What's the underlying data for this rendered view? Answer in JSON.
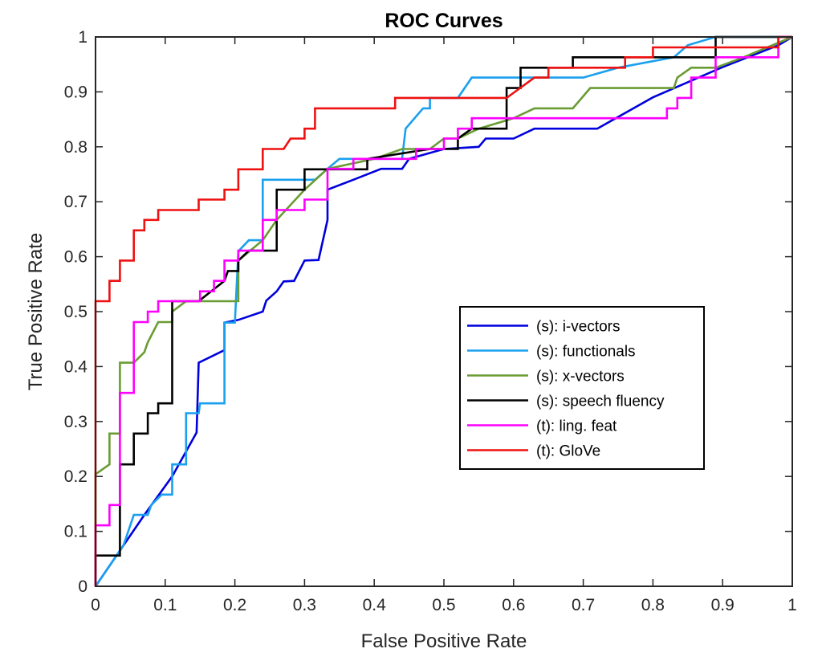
{
  "chart_data": {
    "type": "line",
    "title": "ROC Curves",
    "xlabel": "False Positive Rate",
    "ylabel": "True Positive Rate",
    "xlim": [
      0,
      1
    ],
    "ylim": [
      0,
      1
    ],
    "xticks": [
      0,
      0.1,
      0.2,
      0.3,
      0.4,
      0.5,
      0.6,
      0.7,
      0.8,
      0.9,
      1
    ],
    "yticks": [
      0,
      0.1,
      0.2,
      0.3,
      0.4,
      0.5,
      0.6,
      0.7,
      0.8,
      0.9,
      1
    ],
    "xtick_labels": [
      "0",
      "0.1",
      "0.2",
      "0.3",
      "0.4",
      "0.5",
      "0.6",
      "0.7",
      "0.8",
      "0.9",
      "1"
    ],
    "ytick_labels": [
      "0",
      "0.1",
      "0.2",
      "0.3",
      "0.4",
      "0.5",
      "0.6",
      "0.7",
      "0.8",
      "0.9",
      "1"
    ],
    "grid": false,
    "legend_position": "lower-right",
    "series": [
      {
        "name": "(s): i-vectors",
        "color": "#0000dd",
        "points": [
          [
            0,
            0
          ],
          [
            0.035,
            0.065
          ],
          [
            0.07,
            0.13
          ],
          [
            0.11,
            0.2
          ],
          [
            0.145,
            0.28
          ],
          [
            0.148,
            0.407
          ],
          [
            0.185,
            0.43
          ],
          [
            0.185,
            0.48
          ],
          [
            0.205,
            0.485
          ],
          [
            0.24,
            0.5
          ],
          [
            0.245,
            0.52
          ],
          [
            0.26,
            0.537
          ],
          [
            0.27,
            0.555
          ],
          [
            0.285,
            0.556
          ],
          [
            0.3,
            0.593
          ],
          [
            0.32,
            0.594
          ],
          [
            0.333,
            0.667
          ],
          [
            0.333,
            0.722
          ],
          [
            0.37,
            0.74
          ],
          [
            0.41,
            0.76
          ],
          [
            0.44,
            0.76
          ],
          [
            0.45,
            0.778
          ],
          [
            0.5,
            0.796
          ],
          [
            0.55,
            0.8
          ],
          [
            0.56,
            0.815
          ],
          [
            0.6,
            0.815
          ],
          [
            0.63,
            0.833
          ],
          [
            0.72,
            0.833
          ],
          [
            0.8,
            0.89
          ],
          [
            0.9,
            0.945
          ],
          [
            0.98,
            0.985
          ],
          [
            1,
            1
          ]
        ]
      },
      {
        "name": "(s): functionals",
        "color": "#1aa0ee",
        "points": [
          [
            0,
            0
          ],
          [
            0.04,
            0.074
          ],
          [
            0.055,
            0.13
          ],
          [
            0.075,
            0.13
          ],
          [
            0.08,
            0.148
          ],
          [
            0.095,
            0.167
          ],
          [
            0.11,
            0.167
          ],
          [
            0.11,
            0.222
          ],
          [
            0.13,
            0.222
          ],
          [
            0.13,
            0.315
          ],
          [
            0.148,
            0.315
          ],
          [
            0.15,
            0.333
          ],
          [
            0.185,
            0.333
          ],
          [
            0.185,
            0.48
          ],
          [
            0.2,
            0.48
          ],
          [
            0.205,
            0.61
          ],
          [
            0.22,
            0.63
          ],
          [
            0.24,
            0.63
          ],
          [
            0.24,
            0.74
          ],
          [
            0.3,
            0.74
          ],
          [
            0.315,
            0.74
          ],
          [
            0.333,
            0.76
          ],
          [
            0.35,
            0.778
          ],
          [
            0.39,
            0.778
          ],
          [
            0.44,
            0.778
          ],
          [
            0.445,
            0.833
          ],
          [
            0.47,
            0.87
          ],
          [
            0.48,
            0.87
          ],
          [
            0.48,
            0.889
          ],
          [
            0.52,
            0.889
          ],
          [
            0.54,
            0.926
          ],
          [
            0.7,
            0.926
          ],
          [
            0.75,
            0.944
          ],
          [
            0.83,
            0.963
          ],
          [
            0.85,
            0.985
          ],
          [
            0.89,
            1
          ],
          [
            1,
            1
          ]
        ]
      },
      {
        "name": "(s): x-vectors",
        "color": "#6a9c34",
        "points": [
          [
            0,
            0
          ],
          [
            0,
            0.204
          ],
          [
            0.02,
            0.222
          ],
          [
            0.02,
            0.278
          ],
          [
            0.035,
            0.278
          ],
          [
            0.035,
            0.407
          ],
          [
            0.055,
            0.407
          ],
          [
            0.07,
            0.426
          ],
          [
            0.075,
            0.444
          ],
          [
            0.09,
            0.481
          ],
          [
            0.11,
            0.481
          ],
          [
            0.11,
            0.5
          ],
          [
            0.13,
            0.519
          ],
          [
            0.205,
            0.519
          ],
          [
            0.205,
            0.593
          ],
          [
            0.24,
            0.63
          ],
          [
            0.26,
            0.667
          ],
          [
            0.3,
            0.722
          ],
          [
            0.333,
            0.76
          ],
          [
            0.4,
            0.778
          ],
          [
            0.44,
            0.796
          ],
          [
            0.48,
            0.796
          ],
          [
            0.5,
            0.815
          ],
          [
            0.52,
            0.815
          ],
          [
            0.55,
            0.833
          ],
          [
            0.6,
            0.852
          ],
          [
            0.63,
            0.87
          ],
          [
            0.685,
            0.87
          ],
          [
            0.71,
            0.907
          ],
          [
            0.83,
            0.907
          ],
          [
            0.835,
            0.926
          ],
          [
            0.855,
            0.944
          ],
          [
            0.89,
            0.944
          ],
          [
            0.93,
            0.963
          ],
          [
            1,
            1
          ]
        ]
      },
      {
        "name": "(s): speech fluency",
        "color": "#000000",
        "points": [
          [
            0,
            0
          ],
          [
            0,
            0.056
          ],
          [
            0.035,
            0.056
          ],
          [
            0.035,
            0.148
          ],
          [
            0.035,
            0.222
          ],
          [
            0.055,
            0.222
          ],
          [
            0.055,
            0.278
          ],
          [
            0.075,
            0.278
          ],
          [
            0.075,
            0.315
          ],
          [
            0.09,
            0.315
          ],
          [
            0.09,
            0.333
          ],
          [
            0.11,
            0.333
          ],
          [
            0.11,
            0.519
          ],
          [
            0.148,
            0.519
          ],
          [
            0.185,
            0.556
          ],
          [
            0.19,
            0.574
          ],
          [
            0.205,
            0.574
          ],
          [
            0.205,
            0.593
          ],
          [
            0.22,
            0.611
          ],
          [
            0.26,
            0.611
          ],
          [
            0.26,
            0.722
          ],
          [
            0.3,
            0.722
          ],
          [
            0.3,
            0.759
          ],
          [
            0.333,
            0.759
          ],
          [
            0.37,
            0.759
          ],
          [
            0.39,
            0.759
          ],
          [
            0.39,
            0.778
          ],
          [
            0.48,
            0.796
          ],
          [
            0.52,
            0.796
          ],
          [
            0.52,
            0.815
          ],
          [
            0.54,
            0.833
          ],
          [
            0.59,
            0.833
          ],
          [
            0.59,
            0.907
          ],
          [
            0.61,
            0.907
          ],
          [
            0.61,
            0.944
          ],
          [
            0.685,
            0.944
          ],
          [
            0.685,
            0.963
          ],
          [
            0.89,
            0.963
          ],
          [
            0.89,
            1
          ],
          [
            1,
            1
          ]
        ]
      },
      {
        "name": "(t): ling. feat",
        "color": "#ff00ff",
        "points": [
          [
            0,
            0
          ],
          [
            0,
            0.111
          ],
          [
            0.02,
            0.111
          ],
          [
            0.02,
            0.148
          ],
          [
            0.035,
            0.148
          ],
          [
            0.035,
            0.352
          ],
          [
            0.055,
            0.352
          ],
          [
            0.055,
            0.481
          ],
          [
            0.075,
            0.481
          ],
          [
            0.075,
            0.5
          ],
          [
            0.09,
            0.5
          ],
          [
            0.09,
            0.519
          ],
          [
            0.15,
            0.519
          ],
          [
            0.15,
            0.537
          ],
          [
            0.17,
            0.537
          ],
          [
            0.17,
            0.556
          ],
          [
            0.185,
            0.556
          ],
          [
            0.185,
            0.593
          ],
          [
            0.205,
            0.593
          ],
          [
            0.205,
            0.611
          ],
          [
            0.24,
            0.611
          ],
          [
            0.24,
            0.667
          ],
          [
            0.26,
            0.667
          ],
          [
            0.26,
            0.685
          ],
          [
            0.3,
            0.685
          ],
          [
            0.3,
            0.704
          ],
          [
            0.333,
            0.704
          ],
          [
            0.333,
            0.76
          ],
          [
            0.37,
            0.76
          ],
          [
            0.37,
            0.778
          ],
          [
            0.46,
            0.778
          ],
          [
            0.46,
            0.796
          ],
          [
            0.5,
            0.796
          ],
          [
            0.5,
            0.815
          ],
          [
            0.52,
            0.815
          ],
          [
            0.52,
            0.833
          ],
          [
            0.54,
            0.833
          ],
          [
            0.54,
            0.852
          ],
          [
            0.82,
            0.852
          ],
          [
            0.82,
            0.87
          ],
          [
            0.835,
            0.87
          ],
          [
            0.835,
            0.889
          ],
          [
            0.855,
            0.889
          ],
          [
            0.855,
            0.926
          ],
          [
            0.89,
            0.926
          ],
          [
            0.89,
            0.963
          ],
          [
            0.98,
            0.963
          ],
          [
            0.98,
            1
          ],
          [
            1,
            1
          ]
        ]
      },
      {
        "name": "(t): GloVe",
        "color": "#ee1111",
        "points": [
          [
            0,
            0
          ],
          [
            0,
            0.519
          ],
          [
            0.02,
            0.519
          ],
          [
            0.02,
            0.556
          ],
          [
            0.035,
            0.556
          ],
          [
            0.035,
            0.593
          ],
          [
            0.055,
            0.593
          ],
          [
            0.055,
            0.648
          ],
          [
            0.07,
            0.648
          ],
          [
            0.07,
            0.667
          ],
          [
            0.09,
            0.667
          ],
          [
            0.09,
            0.685
          ],
          [
            0.148,
            0.685
          ],
          [
            0.148,
            0.704
          ],
          [
            0.185,
            0.704
          ],
          [
            0.185,
            0.722
          ],
          [
            0.205,
            0.722
          ],
          [
            0.205,
            0.759
          ],
          [
            0.24,
            0.759
          ],
          [
            0.24,
            0.796
          ],
          [
            0.27,
            0.796
          ],
          [
            0.28,
            0.815
          ],
          [
            0.3,
            0.815
          ],
          [
            0.3,
            0.833
          ],
          [
            0.315,
            0.833
          ],
          [
            0.315,
            0.87
          ],
          [
            0.43,
            0.87
          ],
          [
            0.43,
            0.889
          ],
          [
            0.59,
            0.889
          ],
          [
            0.63,
            0.926
          ],
          [
            0.65,
            0.926
          ],
          [
            0.65,
            0.944
          ],
          [
            0.76,
            0.944
          ],
          [
            0.76,
            0.963
          ],
          [
            0.8,
            0.963
          ],
          [
            0.8,
            0.981
          ],
          [
            0.98,
            0.981
          ],
          [
            0.98,
            1
          ],
          [
            1,
            1
          ]
        ]
      }
    ]
  }
}
